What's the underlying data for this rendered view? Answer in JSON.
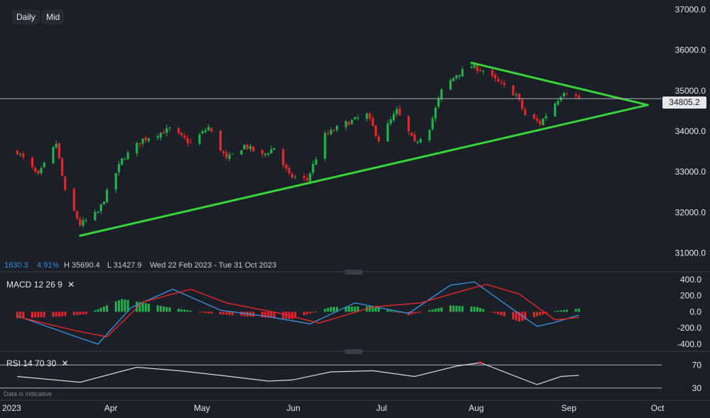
{
  "toolbar": {
    "timeframe": "Daily",
    "price_mode": "Mid"
  },
  "info_bar": {
    "change": "1630.3",
    "change_pct": "4.91%",
    "high": "H 35690.4",
    "low": "L 31427.9",
    "range": "Wed 22 Feb 2023 - Tue 31 Oct 2023"
  },
  "last_price": "34805.2",
  "indicators": {
    "macd": {
      "name": "MACD",
      "p1": "12",
      "p2": "26",
      "p3": "9"
    },
    "rsi": {
      "name": "RSI",
      "p1": "14",
      "p2": "70",
      "p3": "30"
    }
  },
  "footer_note": "Data is indicative",
  "colors": {
    "bull": "#22b14c",
    "bear": "#e8262b",
    "trendline": "#39d13c",
    "macd_line": "#3b8fd6",
    "signal_line": "#e8262b",
    "rsi_overbought": "#e8262b",
    "background": "#1b1f27"
  },
  "chart_data": [
    {
      "type": "candlestick",
      "title": "",
      "x_tick_labels": [
        "2023",
        "Apr",
        "May",
        "Jun",
        "Jul",
        "Aug",
        "Sep",
        "Oct"
      ],
      "y_tick_labels": [
        "37000.0",
        "36000.0",
        "35000.0",
        "34000.0",
        "33000.0",
        "32000.0",
        "31000.0"
      ],
      "ylim": [
        30800,
        37150
      ],
      "grid": false,
      "close_path": [
        [
          "2023-03-01",
          33500
        ],
        [
          "2023-03-08",
          32900
        ],
        [
          "2023-03-14",
          33700
        ],
        [
          "2023-03-17",
          32500
        ],
        [
          "2023-03-22",
          31700
        ],
        [
          "2023-03-28",
          32000
        ],
        [
          "2023-04-05",
          33300
        ],
        [
          "2023-04-12",
          33800
        ],
        [
          "2023-04-21",
          34050
        ],
        [
          "2023-04-28",
          33700
        ],
        [
          "2023-05-04",
          34100
        ],
        [
          "2023-05-10",
          33300
        ],
        [
          "2023-05-16",
          33650
        ],
        [
          "2023-05-22",
          33400
        ],
        [
          "2023-05-26",
          33600
        ],
        [
          "2023-05-31",
          32900
        ],
        [
          "2023-06-06",
          32800
        ],
        [
          "2023-06-12",
          33900
        ],
        [
          "2023-06-19",
          34200
        ],
        [
          "2023-06-26",
          34400
        ],
        [
          "2023-06-30",
          33800
        ],
        [
          "2023-07-06",
          34500
        ],
        [
          "2023-07-12",
          33700
        ],
        [
          "2023-07-17",
          34100
        ],
        [
          "2023-07-21",
          35000
        ],
        [
          "2023-07-26",
          35400
        ],
        [
          "2023-07-31",
          35600
        ],
        [
          "2023-08-04",
          35500
        ],
        [
          "2023-08-09",
          35200
        ],
        [
          "2023-08-15",
          34900
        ],
        [
          "2023-08-18",
          34400
        ],
        [
          "2023-08-23",
          34200
        ],
        [
          "2023-08-28",
          34700
        ],
        [
          "2023-08-31",
          35000
        ],
        [
          "2023-09-05",
          34805
        ]
      ],
      "high": 35690.4,
      "low": 31427.9,
      "last": 34805.2,
      "annotations": [
        {
          "type": "trendline",
          "from": [
            "2023-03-22",
            31427.9
          ],
          "to": [
            "2023-09-28",
            34650
          ]
        },
        {
          "type": "trendline",
          "from": [
            "2023-07-31",
            35690.4
          ],
          "to": [
            "2023-09-28",
            34650
          ]
        },
        {
          "type": "horizontal-line",
          "y": 34805.2
        }
      ]
    },
    {
      "type": "line",
      "title": "MACD 12 26 9",
      "y_tick_labels": [
        "400.0",
        "200.0",
        "0.0",
        "-200.0",
        "-400.0"
      ],
      "ylim": [
        -480,
        460
      ],
      "series": [
        {
          "name": "MACD",
          "x": [
            "2023-03-01",
            "2023-03-20",
            "2023-03-28",
            "2023-04-08",
            "2023-04-22",
            "2023-05-08",
            "2023-05-24",
            "2023-06-07",
            "2023-06-22",
            "2023-07-10",
            "2023-07-24",
            "2023-08-01",
            "2023-08-12",
            "2023-08-22",
            "2023-08-28",
            "2023-09-05"
          ],
          "values": [
            -50,
            -300,
            -400,
            50,
            280,
            20,
            -60,
            -150,
            110,
            -20,
            330,
            370,
            80,
            -180,
            -130,
            -40
          ]
        },
        {
          "name": "Signal",
          "x": [
            "2023-03-01",
            "2023-03-20",
            "2023-03-31",
            "2023-04-12",
            "2023-04-28",
            "2023-05-10",
            "2023-05-28",
            "2023-06-10",
            "2023-06-28",
            "2023-07-14",
            "2023-07-28",
            "2023-08-05",
            "2023-08-16",
            "2023-08-28",
            "2023-09-05"
          ],
          "values": [
            -60,
            -230,
            -310,
            120,
            280,
            110,
            -20,
            -140,
            60,
            110,
            260,
            340,
            220,
            -100,
            -70
          ]
        }
      ],
      "histogram": {
        "x": [
          "2023-03-01",
          "2023-03-14",
          "2023-03-24",
          "2023-04-05",
          "2023-04-20",
          "2023-05-04",
          "2023-05-18",
          "2023-06-01",
          "2023-06-14",
          "2023-06-28",
          "2023-07-10",
          "2023-07-24",
          "2023-08-02",
          "2023-08-16",
          "2023-08-28",
          "2023-09-05"
        ],
        "values": [
          -80,
          -60,
          -30,
          160,
          60,
          -20,
          -60,
          -90,
          60,
          70,
          -40,
          80,
          60,
          -120,
          10,
          40
        ]
      }
    },
    {
      "type": "line",
      "title": "RSI 14 70 30",
      "y_tick_labels": [
        "70",
        "30"
      ],
      "ylim": [
        10,
        90
      ],
      "series": [
        {
          "name": "RSI",
          "x": [
            "2023-03-01",
            "2023-03-22",
            "2023-04-10",
            "2023-04-24",
            "2023-05-08",
            "2023-05-24",
            "2023-06-01",
            "2023-06-14",
            "2023-06-28",
            "2023-07-12",
            "2023-07-26",
            "2023-08-03",
            "2023-08-14",
            "2023-08-22",
            "2023-08-30",
            "2023-09-05"
          ],
          "values": [
            50,
            40,
            66,
            60,
            52,
            42,
            44,
            58,
            60,
            50,
            68,
            74,
            52,
            36,
            50,
            52
          ]
        }
      ]
    }
  ]
}
